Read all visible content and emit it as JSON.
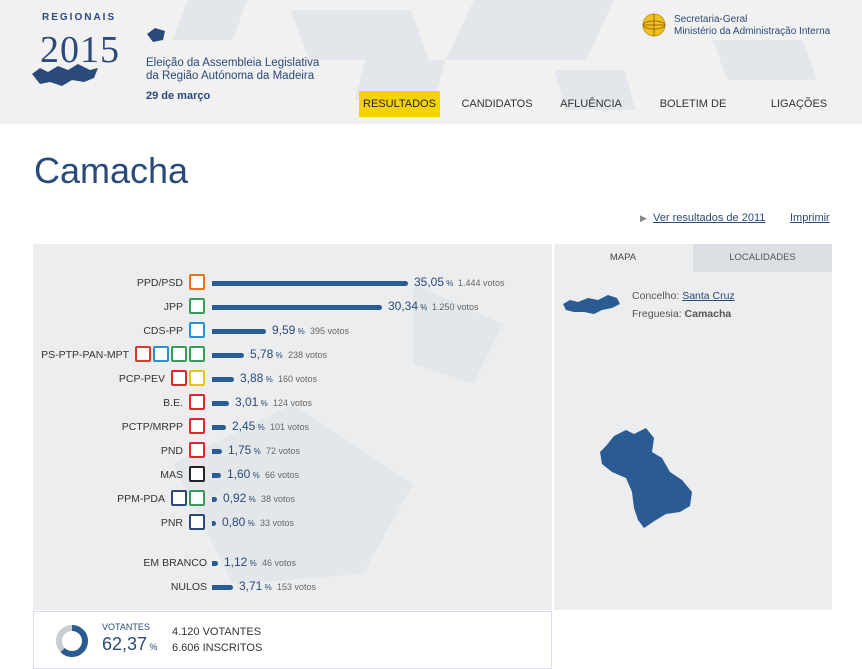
{
  "header": {
    "logo_regionais": "REGIONAIS",
    "logo_year": "2015",
    "election_line1": "Eleição da Assembleia Legislativa",
    "election_line2": "da Região Autónoma da Madeira",
    "election_date": "29 de março",
    "sg_line1": "Secretaria-Geral",
    "sg_line2": "Ministério da Administração Interna"
  },
  "nav": {
    "resultados": "RESULTADOS",
    "candidatos": "CANDIDATOS",
    "afluencia": "AFLUÊNCIA",
    "boletim": "BOLETIM DE VOTO",
    "ligacoes": "LIGAÇÕES"
  },
  "page": {
    "title": "Camacha",
    "link_2011": "Ver resultados de 2011",
    "link_print": "Imprimir"
  },
  "results": [
    {
      "name": "PPD/PSD",
      "pct": "35,05",
      "votes": "1.444 votos",
      "value": 35.05,
      "colors": [
        "#e8731c"
      ]
    },
    {
      "name": "JPP",
      "pct": "30,34",
      "votes": "1.250 votos",
      "value": 30.34,
      "colors": [
        "#3a9a5a"
      ]
    },
    {
      "name": "CDS-PP",
      "pct": "9,59",
      "votes": "395 votos",
      "value": 9.59,
      "colors": [
        "#2a8fd0"
      ]
    },
    {
      "name": "PS-PTP-PAN-MPT",
      "pct": "5,78",
      "votes": "238 votos",
      "value": 5.78,
      "colors": [
        "#d83a2a",
        "#2a8fd0",
        "#3a9a5a",
        "#3a9a5a"
      ]
    },
    {
      "name": "PCP-PEV",
      "pct": "3,88",
      "votes": "160 votos",
      "value": 3.88,
      "colors": [
        "#d82a2a",
        "#e8c21c"
      ]
    },
    {
      "name": "B.E.",
      "pct": "3,01",
      "votes": "124 votos",
      "value": 3.01,
      "colors": [
        "#d82a2a"
      ]
    },
    {
      "name": "PCTP/MRPP",
      "pct": "2,45",
      "votes": "101 votos",
      "value": 2.45,
      "colors": [
        "#d82a2a"
      ]
    },
    {
      "name": "PND",
      "pct": "1,75",
      "votes": "72 votos",
      "value": 1.75,
      "colors": [
        "#d82a2a"
      ]
    },
    {
      "name": "MAS",
      "pct": "1,60",
      "votes": "66 votos",
      "value": 1.6,
      "colors": [
        "#222222"
      ]
    },
    {
      "name": "PPM-PDA",
      "pct": "0,92",
      "votes": "38 votos",
      "value": 0.92,
      "colors": [
        "#2a4a7a",
        "#3a9a5a"
      ]
    },
    {
      "name": "PNR",
      "pct": "0,80",
      "votes": "33 votos",
      "value": 0.8,
      "colors": [
        "#2a4a7a"
      ]
    }
  ],
  "extras": [
    {
      "name": "EM BRANCO",
      "pct": "1,12",
      "votes": "46 votos",
      "value": 1.12
    },
    {
      "name": "NULOS",
      "pct": "3,71",
      "votes": "153 votos",
      "value": 3.71
    }
  ],
  "votantes": {
    "label": "VOTANTES",
    "pct": "62,37",
    "pct_value": 62.37,
    "votantes": "4.120 VOTANTES",
    "inscritos": "6.606 INSCRITOS"
  },
  "right": {
    "tab_mapa": "MAPA",
    "tab_localidades": "LOCALIDADES",
    "concelho_label": "Concelho:",
    "concelho_value": "Santa Cruz",
    "freguesia_label": "Freguesia:",
    "freguesia_value": "Camacha"
  },
  "colors": {
    "accent": "#2a4a7a",
    "bar": "#2a5b93",
    "nav_active": "#f5d300"
  }
}
